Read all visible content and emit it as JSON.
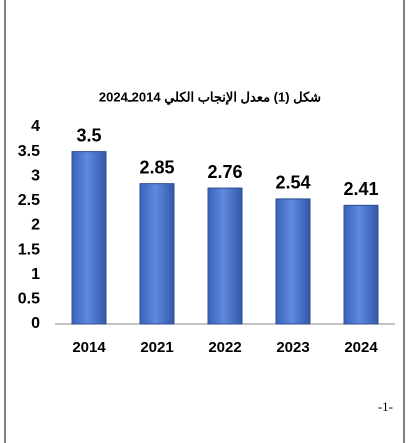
{
  "chart_data": {
    "type": "bar",
    "title": "شكل (1) معدل الإنجاب الكلي 2014ـ2024",
    "categories": [
      "2014",
      "2021",
      "2022",
      "2023",
      "2024"
    ],
    "values": [
      3.5,
      2.85,
      2.76,
      2.54,
      2.41
    ],
    "color": "#4472c4",
    "ylim": [
      0,
      4
    ],
    "yticks": [
      0,
      0.5,
      1,
      1.5,
      2,
      2.5,
      3,
      3.5,
      4
    ],
    "grid": false
  },
  "page_number": "-1-"
}
